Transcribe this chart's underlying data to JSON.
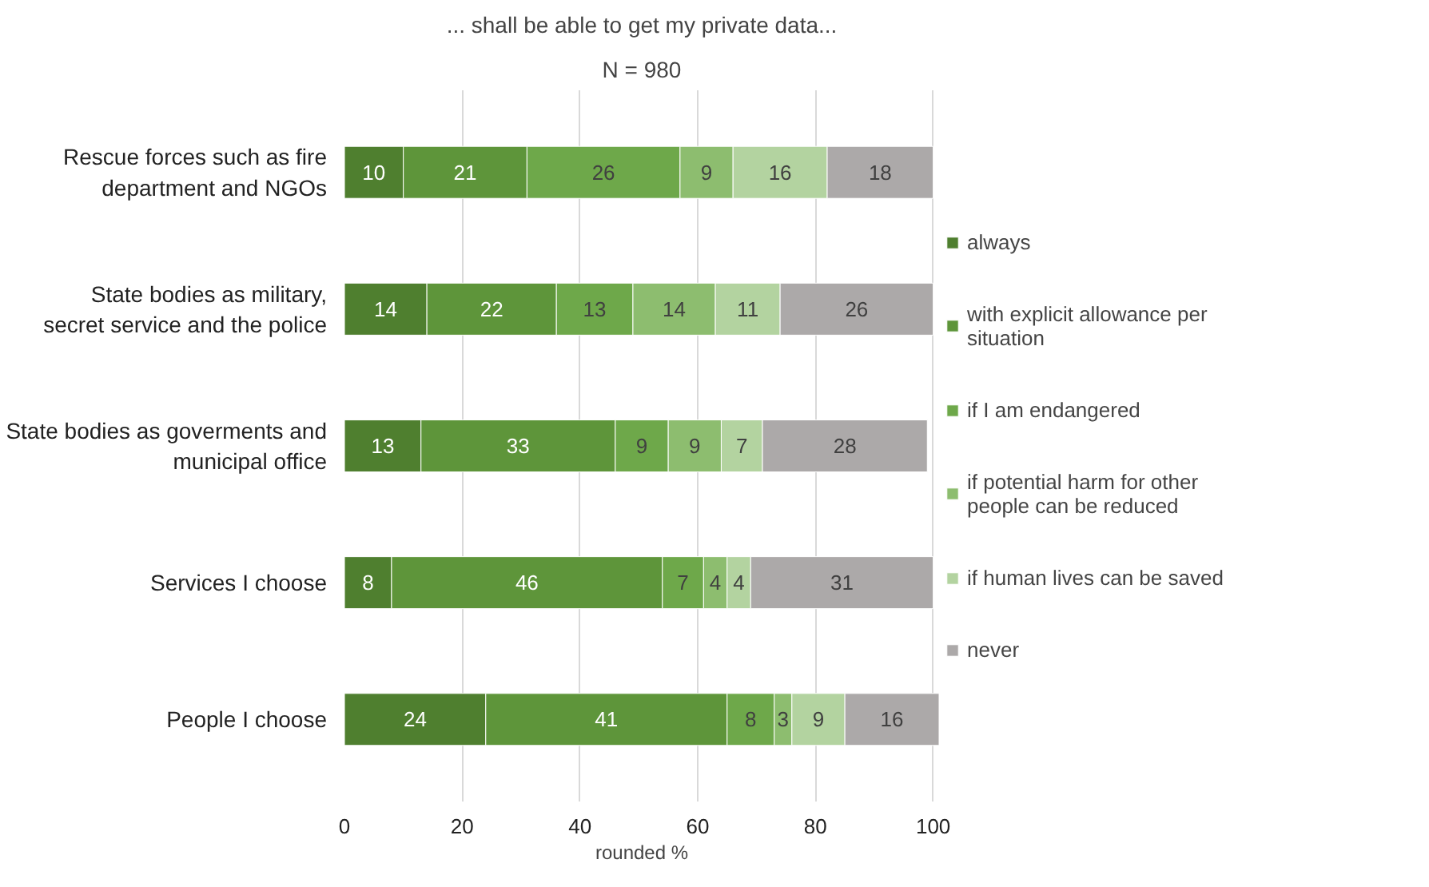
{
  "chart_data": {
    "type": "bar",
    "orientation": "horizontal",
    "stacked": true,
    "title": "... shall be able to get my private data...",
    "subtitle": "N = 980",
    "xlabel": "rounded %",
    "categories": [
      "Rescue forces such as fire department and NGOs",
      "State bodies as military, secret service and the police",
      "State bodies as goverments and municipal office",
      "Services I choose",
      "People I choose"
    ],
    "series": [
      {
        "name": "always",
        "color": "#4f7f2f",
        "values": [
          10,
          14,
          13,
          8,
          24
        ]
      },
      {
        "name": "with explicit allowance per situation",
        "color": "#5e953a",
        "values": [
          21,
          22,
          33,
          46,
          41
        ]
      },
      {
        "name": "if I am endangered",
        "color": "#6ea84a",
        "values": [
          26,
          13,
          9,
          7,
          8
        ]
      },
      {
        "name": "if potential harm for other people can be reduced",
        "color": "#8dbd6f",
        "values": [
          9,
          14,
          9,
          4,
          3
        ]
      },
      {
        "name": "if human lives can be saved",
        "color": "#b3d3a0",
        "values": [
          16,
          11,
          7,
          4,
          9
        ]
      },
      {
        "name": "never",
        "color": "#aca9a9",
        "values": [
          18,
          26,
          28,
          31,
          16
        ]
      }
    ],
    "xlim": [
      0,
      101
    ],
    "xticks": [
      0,
      20,
      40,
      60,
      80,
      100
    ],
    "grid": "x",
    "legend": "right",
    "data_labels": true
  }
}
